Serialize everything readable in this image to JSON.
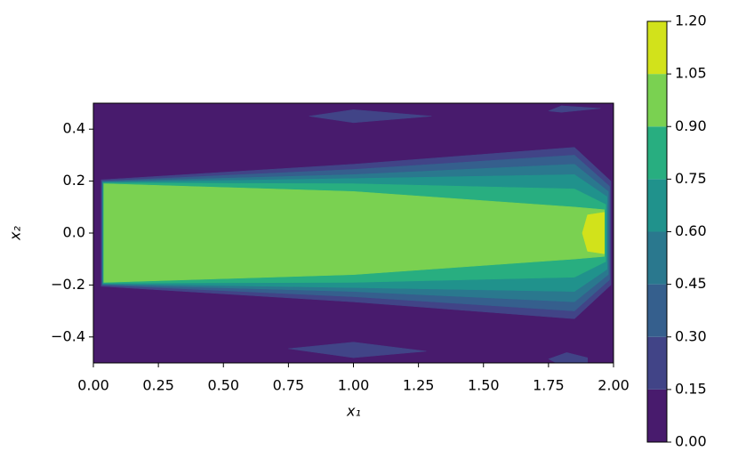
{
  "chart_data": {
    "type": "contour",
    "xlabel": "x₁",
    "ylabel": "x₂",
    "xlim": [
      0,
      2
    ],
    "ylim": [
      -0.5,
      0.5
    ],
    "xticks": [
      {
        "value": 0,
        "label": "0.00"
      },
      {
        "value": 0.25,
        "label": "0.25"
      },
      {
        "value": 0.5,
        "label": "0.50"
      },
      {
        "value": 0.75,
        "label": "0.75"
      },
      {
        "value": 1,
        "label": "1.00"
      },
      {
        "value": 1.25,
        "label": "1.25"
      },
      {
        "value": 1.5,
        "label": "1.50"
      },
      {
        "value": 1.75,
        "label": "1.75"
      },
      {
        "value": 2,
        "label": "2.00"
      }
    ],
    "yticks": [
      {
        "value": -0.4,
        "label": "−0.4"
      },
      {
        "value": -0.2,
        "label": "−0.2"
      },
      {
        "value": 0,
        "label": "0.0"
      },
      {
        "value": 0.2,
        "label": "0.2"
      },
      {
        "value": 0.4,
        "label": "0.4"
      }
    ],
    "levels": [
      {
        "value": 0,
        "label": "0.00"
      },
      {
        "value": 0.15,
        "label": "0.15"
      },
      {
        "value": 0.3,
        "label": "0.30"
      },
      {
        "value": 0.45,
        "label": "0.45"
      },
      {
        "value": 0.6,
        "label": "0.60"
      },
      {
        "value": 0.75,
        "label": "0.75"
      },
      {
        "value": 0.9,
        "label": "0.90"
      },
      {
        "value": 1.05,
        "label": "1.05"
      },
      {
        "value": 1.2,
        "label": "1.20"
      }
    ],
    "colors": [
      "#481b6d",
      "#414487",
      "#355f8d",
      "#2a788e",
      "#20928c",
      "#28ae80",
      "#7ad151",
      "#d2e21b"
    ],
    "contours": [
      {
        "level": 0.15,
        "polygons": [
          [
            [
              0.03,
              -0.205
            ],
            [
              0.03,
              0.205
            ],
            [
              1,
              0.265
            ],
            [
              1.85,
              0.33
            ],
            [
              1.99,
              0.2
            ],
            [
              1.99,
              -0.2
            ],
            [
              1.85,
              -0.33
            ],
            [
              1,
              -0.265
            ]
          ],
          [
            [
              0.83,
              0.45
            ],
            [
              1.0,
              0.475
            ],
            [
              1.3,
              0.45
            ],
            [
              1.0,
              0.425
            ]
          ],
          [
            [
              0.75,
              -0.445
            ],
            [
              1.0,
              -0.42
            ],
            [
              1.28,
              -0.455
            ],
            [
              1.0,
              -0.48
            ]
          ],
          [
            [
              1.75,
              0.47
            ],
            [
              1.8,
              0.49
            ],
            [
              1.95,
              0.48
            ],
            [
              1.8,
              0.465
            ]
          ],
          [
            [
              1.75,
              -0.485
            ],
            [
              1.82,
              -0.46
            ],
            [
              1.9,
              -0.48
            ],
            [
              1.9,
              -0.5
            ],
            [
              1.78,
              -0.5
            ]
          ]
        ]
      },
      {
        "level": 0.3,
        "polygons": [
          [
            [
              0.033,
              -0.2
            ],
            [
              0.033,
              0.2
            ],
            [
              1,
              0.245
            ],
            [
              1.85,
              0.3
            ],
            [
              1.985,
              0.18
            ],
            [
              1.985,
              -0.18
            ],
            [
              1.85,
              -0.3
            ],
            [
              1,
              -0.245
            ]
          ]
        ]
      },
      {
        "level": 0.45,
        "polygons": [
          [
            [
              0.035,
              -0.198
            ],
            [
              0.035,
              0.198
            ],
            [
              1,
              0.225
            ],
            [
              1.85,
              0.265
            ],
            [
              1.98,
              0.16
            ],
            [
              1.98,
              -0.16
            ],
            [
              1.85,
              -0.265
            ],
            [
              1,
              -0.225
            ]
          ]
        ]
      },
      {
        "level": 0.6,
        "polygons": [
          [
            [
              0.037,
              -0.195
            ],
            [
              0.037,
              0.195
            ],
            [
              1,
              0.21
            ],
            [
              1.85,
              0.225
            ],
            [
              1.975,
              0.14
            ],
            [
              1.975,
              -0.14
            ],
            [
              1.85,
              -0.225
            ],
            [
              1,
              -0.21
            ]
          ]
        ]
      },
      {
        "level": 0.75,
        "polygons": [
          [
            [
              0.039,
              -0.193
            ],
            [
              0.039,
              0.193
            ],
            [
              1,
              0.19
            ],
            [
              1.85,
              0.17
            ],
            [
              1.97,
              0.11
            ],
            [
              1.97,
              -0.11
            ],
            [
              1.85,
              -0.17
            ],
            [
              1,
              -0.19
            ]
          ]
        ]
      },
      {
        "level": 0.9,
        "polygons": [
          [
            [
              0.04,
              -0.19
            ],
            [
              0.04,
              0.19
            ],
            [
              1,
              0.16
            ],
            [
              1.85,
              0.1
            ],
            [
              1.965,
              0.09
            ],
            [
              1.965,
              -0.09
            ],
            [
              1.85,
              -0.1
            ],
            [
              1,
              -0.16
            ]
          ]
        ]
      },
      {
        "level": 1.05,
        "polygons": [
          [
            [
              1.88,
              0
            ],
            [
              1.9,
              0.07
            ],
            [
              1.965,
              0.08
            ],
            [
              1.965,
              -0.08
            ],
            [
              1.9,
              -0.07
            ]
          ]
        ]
      }
    ]
  }
}
